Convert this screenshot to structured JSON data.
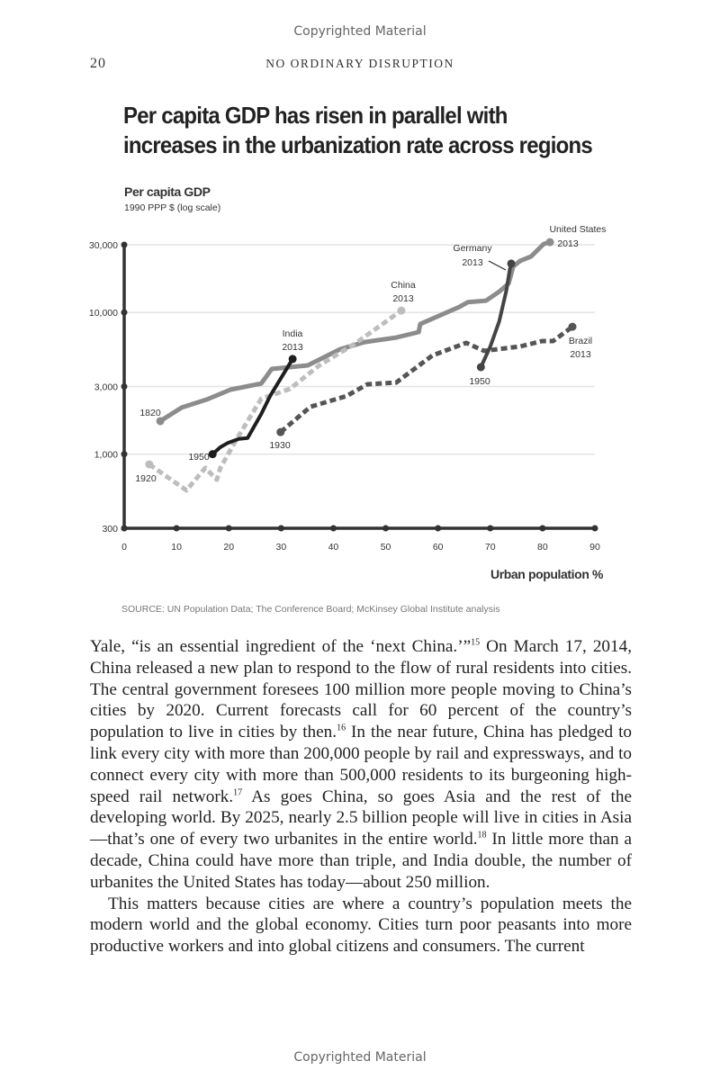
{
  "header": {
    "watermark_top": "Copyrighted Material",
    "page_number": "20",
    "running_head": "NO ORDINARY DISRUPTION"
  },
  "footer": {
    "watermark_bottom": "Copyrighted Material"
  },
  "chart_data": {
    "type": "line",
    "title": "Per capita GDP has risen in parallel with increases in the urbanization rate across regions",
    "title_lines": [
      "Per capita GDP has risen in parallel with",
      "increases in the urbanization rate across regions"
    ],
    "ylabel": "Per capita GDP",
    "ylabel_sub": "1990 PPP $ (log scale)",
    "xlabel": "Urban population %",
    "source": "SOURCE: UN Population Data; The Conference Board; McKinsey Global Institute analysis",
    "xlim": [
      0,
      90
    ],
    "ylim": [
      300,
      30000
    ],
    "yscale": "log",
    "grid": true,
    "xticks": [
      "0",
      "10",
      "20",
      "30",
      "40",
      "50",
      "60",
      "70",
      "80",
      "90"
    ],
    "yticks": [
      {
        "value": 30000,
        "label": "30,000"
      },
      {
        "value": 10000,
        "label": "10,000"
      },
      {
        "value": 3000,
        "label": "3,000"
      },
      {
        "value": 1000,
        "label": "1,000"
      },
      {
        "value": 300,
        "label": "300"
      }
    ],
    "series": [
      {
        "name": "United States",
        "color": "#8c8c8c",
        "style": "solid",
        "start_label": "1820",
        "end_label": "2013",
        "points": [
          [
            6.9,
            1710
          ],
          [
            11,
            2130
          ],
          [
            15.8,
            2430
          ],
          [
            20.3,
            2850
          ],
          [
            26.2,
            3150
          ],
          [
            28.2,
            3990
          ],
          [
            35.1,
            4230
          ],
          [
            41.3,
            5500
          ],
          [
            46,
            6180
          ],
          [
            52,
            6650
          ],
          [
            56.3,
            7260
          ],
          [
            56.6,
            8280
          ],
          [
            64,
            10900
          ],
          [
            65.7,
            11800
          ],
          [
            69.2,
            12100
          ],
          [
            71.7,
            14000
          ],
          [
            73.5,
            16000
          ],
          [
            74.4,
            21100
          ],
          [
            75.7,
            23100
          ],
          [
            77.8,
            24800
          ],
          [
            80.2,
            30400
          ],
          [
            81.4,
            31300
          ]
        ]
      },
      {
        "name": "Germany",
        "color": "#444444",
        "style": "solid",
        "start_label": "1950",
        "end_label": "2013",
        "points": [
          [
            68.2,
            4110
          ],
          [
            70,
            5750
          ],
          [
            71.7,
            8650
          ],
          [
            73.1,
            14450
          ],
          [
            73.7,
            19900
          ],
          [
            74,
            22100
          ]
        ]
      },
      {
        "name": "China",
        "color": "#bdbdbd",
        "style": "dashed",
        "start_label": "1920",
        "end_label": "2013",
        "points": [
          [
            4.8,
            847
          ],
          [
            11.9,
            555
          ],
          [
            15.5,
            800
          ],
          [
            17.7,
            661
          ],
          [
            18.4,
            800
          ],
          [
            21.3,
            1240
          ],
          [
            26.2,
            2460
          ],
          [
            31.7,
            2890
          ],
          [
            37.3,
            4230
          ],
          [
            44.1,
            6010
          ],
          [
            53,
            10300
          ]
        ]
      },
      {
        "name": "India",
        "color": "#1e1e1e",
        "style": "solid",
        "start_label": "1950",
        "end_label": "2013",
        "points": [
          [
            16.9,
            1000
          ],
          [
            18.4,
            1120
          ],
          [
            19.8,
            1200
          ],
          [
            21.9,
            1280
          ],
          [
            23.6,
            1300
          ],
          [
            26.2,
            1920
          ],
          [
            27.9,
            2570
          ],
          [
            32.2,
            4690
          ]
        ]
      },
      {
        "name": "Brazil",
        "color": "#555555",
        "style": "dashed",
        "start_label": "1930",
        "end_label": "2013",
        "points": [
          [
            29.9,
            1430
          ],
          [
            35.6,
            2160
          ],
          [
            42.5,
            2570
          ],
          [
            46.5,
            3110
          ],
          [
            52,
            3200
          ],
          [
            58.9,
            4960
          ],
          [
            65.4,
            6100
          ],
          [
            68.8,
            5350
          ],
          [
            75.7,
            5750
          ],
          [
            79.9,
            6280
          ],
          [
            82,
            6280
          ],
          [
            85.7,
            7920
          ]
        ]
      }
    ],
    "annotations": {
      "us_end": [
        "United States",
        "2013"
      ],
      "us_start": "1820",
      "germany_end": [
        "Germany",
        "2013"
      ],
      "germany_start": "1950",
      "china_end": [
        "China",
        "2013"
      ],
      "china_start": "1920",
      "india_end": [
        "India",
        "2013"
      ],
      "india_start": "1950",
      "brazil_end": [
        "Brazil",
        "2013"
      ],
      "brazil_start": "1930"
    }
  },
  "body": {
    "p1": [
      "Yale, “is an essential ingredient of the ‘next China.’”",
      "15",
      " On March 17, 2014, China released a new plan to respond to the flow of rural residents into cities. The central government foresees 100 million more people moving to China’s cities by 2020. Current forecasts call for 60 percent of the country’s population to live in cities by then.",
      "16",
      " In the near future, China has pledged to link every city with more than 200,000 people by rail and expressways, and to connect every city with more than 500,000 residents to its burgeon­ing high-speed rail network.",
      "17",
      " As goes China, so goes Asia and the rest of the developing world. By 2025, nearly 2.5 billion people will live in cities in Asia—that’s one of every two urbanites in the entire world.",
      "18",
      " In little more than a decade, China could have more than triple, and India double, the number of urbanites the United States has today—about 250 million."
    ],
    "p2": "This matters because cities are where a country’s population meets the modern world and the global economy. Cities turn poor peasants into more productive workers and into global citizens and consumers. The current"
  }
}
